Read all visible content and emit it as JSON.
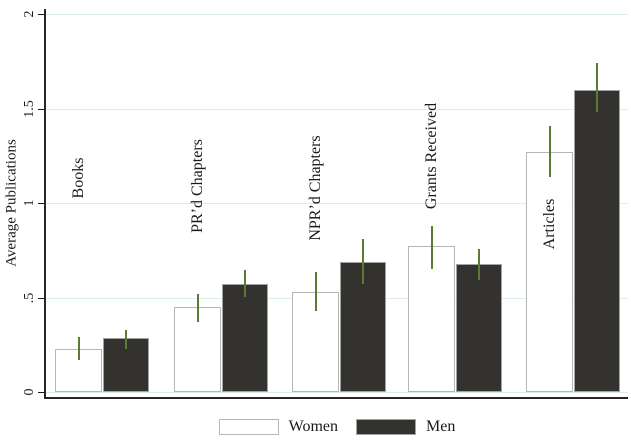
{
  "chart_data": {
    "type": "bar",
    "title": "",
    "xlabel": "",
    "ylabel": "Average Publications",
    "ylim": [
      0,
      2
    ],
    "yticks": [
      0,
      0.5,
      1,
      1.5,
      2
    ],
    "ytick_labels": [
      "0",
      ".5",
      "1",
      "1.5",
      "2"
    ],
    "grid": true,
    "legend_position": "bottom",
    "categories": [
      "Books",
      "PR’d Chapters",
      "NPR’d Chapters",
      "Grants Received",
      "Articles"
    ],
    "category_label_y": [
      1.13,
      1.09,
      1.08,
      1.25,
      0.89
    ],
    "series": [
      {
        "name": "Women",
        "fill": "#ffffff",
        "border": "#b6b6b6",
        "values": [
          0.23,
          0.45,
          0.53,
          0.77,
          1.27
        ],
        "ci_low": [
          0.17,
          0.37,
          0.43,
          0.65,
          1.14
        ],
        "ci_high": [
          0.29,
          0.52,
          0.635,
          0.88,
          1.41
        ]
      },
      {
        "name": "Men",
        "fill": "#33322e",
        "border": "#a3a3a3",
        "values": [
          0.285,
          0.57,
          0.69,
          0.675,
          1.6
        ],
        "ci_low": [
          0.23,
          0.5,
          0.57,
          0.59,
          1.48
        ],
        "ci_high": [
          0.33,
          0.645,
          0.81,
          0.755,
          1.74
        ]
      }
    ],
    "ci_color": "#5a7a36",
    "gridline_color": "#dceee9",
    "axis_color": "#262626"
  }
}
